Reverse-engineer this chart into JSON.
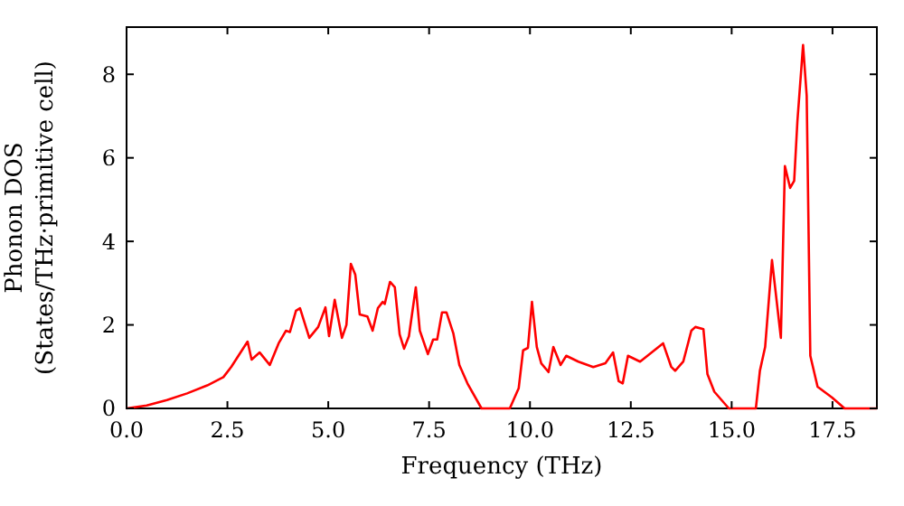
{
  "chart_data": {
    "type": "line",
    "xlabel": "Frequency (THz)",
    "ylabel": "Phonon DOS\n(States/THz·primitive cell)",
    "xlim": [
      0,
      18.6
    ],
    "ylim": [
      0,
      9.13
    ],
    "xticks": [
      {
        "value": 0,
        "label": "0.0"
      },
      {
        "value": 2.5,
        "label": "2.5"
      },
      {
        "value": 5,
        "label": "5.0"
      },
      {
        "value": 7.5,
        "label": "7.5"
      },
      {
        "value": 10,
        "label": "10.0"
      },
      {
        "value": 12.5,
        "label": "12.5"
      },
      {
        "value": 15,
        "label": "15.0"
      },
      {
        "value": 17.5,
        "label": "17.5"
      }
    ],
    "yticks": [
      0,
      2,
      4,
      6,
      8
    ],
    "grid": false,
    "marker": "none",
    "line_style": "solid",
    "series": [
      {
        "color": "#ff0000",
        "x": [
          0,
          0.5,
          1,
          1.5,
          2,
          2.4,
          2.6,
          3.0,
          3.1,
          3.3,
          3.55,
          3.77,
          3.95,
          4.05,
          4.2,
          4.3,
          4.53,
          4.75,
          4.93,
          5.02,
          5.16,
          5.34,
          5.45,
          5.56,
          5.67,
          5.78,
          5.97,
          6.1,
          6.23,
          6.35,
          6.4,
          6.53,
          6.65,
          6.77,
          6.88,
          7.0,
          7.17,
          7.27,
          7.47,
          7.6,
          7.7,
          7.82,
          7.93,
          8.1,
          8.25,
          8.45,
          8.8,
          9.5,
          9.72,
          9.83,
          9.95,
          10.05,
          10.17,
          10.28,
          10.46,
          10.58,
          10.76,
          10.9,
          11.2,
          11.57,
          11.87,
          12.06,
          12.2,
          12.3,
          12.43,
          12.73,
          13.3,
          13.5,
          13.6,
          13.8,
          14.0,
          14.1,
          14.3,
          14.4,
          14.57,
          14.93,
          15.6,
          15.7,
          15.83,
          16.0,
          16.22,
          16.32,
          16.45,
          16.55,
          16.63,
          16.77,
          16.86,
          16.95,
          17.13,
          17.49,
          17.8,
          18.6
        ],
        "values": [
          0,
          0.07,
          0.2,
          0.36,
          0.55,
          0.75,
          1.0,
          1.6,
          1.17,
          1.34,
          1.04,
          1.56,
          1.86,
          1.83,
          2.34,
          2.4,
          1.69,
          1.95,
          2.42,
          1.73,
          2.6,
          1.69,
          2.0,
          3.46,
          3.2,
          2.25,
          2.2,
          1.86,
          2.4,
          2.55,
          2.5,
          3.03,
          2.9,
          1.77,
          1.43,
          1.73,
          2.9,
          1.86,
          1.3,
          1.65,
          1.65,
          2.3,
          2.3,
          1.8,
          1.04,
          0.6,
          0,
          0,
          0.48,
          1.39,
          1.45,
          2.55,
          1.47,
          1.08,
          0.87,
          1.47,
          1.04,
          1.26,
          1.12,
          0.99,
          1.08,
          1.34,
          0.65,
          0.6,
          1.26,
          1.12,
          1.56,
          1.0,
          0.9,
          1.12,
          1.86,
          1.95,
          1.9,
          0.82,
          0.4,
          0,
          0,
          0.9,
          1.47,
          3.55,
          1.69,
          5.8,
          5.28,
          5.45,
          6.88,
          8.7,
          7.49,
          1.26,
          0.52,
          0.26,
          0,
          0
        ]
      }
    ]
  }
}
